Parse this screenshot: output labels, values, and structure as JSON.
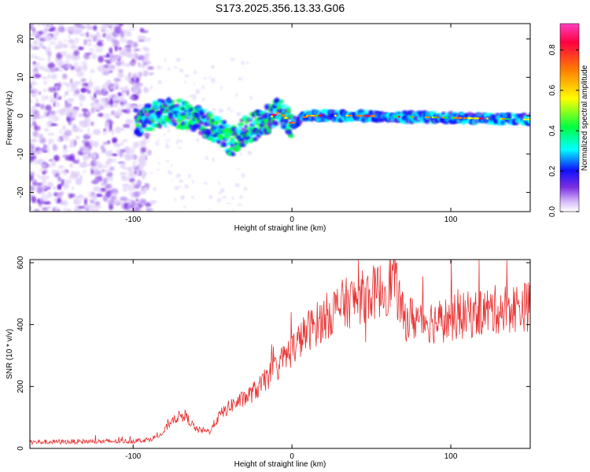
{
  "title": "S173.2025.356.13.33.G06",
  "chart_data": [
    {
      "type": "heatmap",
      "title": "S173.2025.356.13.33.G06",
      "xlabel": "Height of straight line (km)",
      "ylabel": "Frequency (Hz)",
      "xlim": [
        -165,
        150
      ],
      "ylim": [
        -25,
        24
      ],
      "xticks": [
        -100,
        0,
        100
      ],
      "yticks": [
        -20,
        -10,
        0,
        10,
        20
      ],
      "colorbar": {
        "label": "Normalized spectral amplitude",
        "ticks": [
          0.0,
          0.2,
          0.4,
          0.6,
          0.8
        ],
        "range": [
          0,
          0.93
        ],
        "colors": [
          "#ffffff",
          "#c8a8f8",
          "#7a2ee0",
          "#1010ff",
          "#00ffff",
          "#00ff40",
          "#ffff00",
          "#ff8000",
          "#ff0040",
          "#ff40c0"
        ]
      },
      "features": [
        {
          "name": "noise",
          "x_range": [
            -165,
            -95
          ],
          "freq_range": [
            -25,
            24
          ],
          "amplitude": 0.05
        },
        {
          "name": "signal-track",
          "x_range": [
            -98,
            150
          ],
          "freq_center": [
            [
              -98,
              -2
            ],
            [
              -80,
              1
            ],
            [
              -65,
              0
            ],
            [
              -55,
              -2
            ],
            [
              -45,
              -4
            ],
            [
              -38,
              -7
            ],
            [
              -30,
              -4
            ],
            [
              -20,
              -2
            ],
            [
              -8,
              1
            ],
            [
              0,
              -2
            ],
            [
              10,
              0
            ],
            [
              40,
              0
            ],
            [
              150,
              -1
            ]
          ],
          "amplitude": 0.6
        }
      ]
    },
    {
      "type": "line",
      "xlabel": "Height of straight line (km)",
      "ylabel": "SNR (10 * v/v)",
      "xlim": [
        -165,
        150
      ],
      "ylim": [
        0,
        610
      ],
      "xticks": [
        -100,
        0,
        100
      ],
      "yticks": [
        0,
        200,
        400,
        600
      ],
      "series": [
        {
          "name": "SNR",
          "color": "#e83030",
          "x": [
            -165,
            -140,
            -120,
            -100,
            -90,
            -82,
            -75,
            -68,
            -60,
            -52,
            -45,
            -38,
            -30,
            -20,
            -10,
            0,
            10,
            20,
            30,
            40,
            50,
            60,
            64,
            70,
            80,
            90,
            100,
            110,
            120,
            130,
            140,
            150
          ],
          "values": [
            20,
            22,
            22,
            24,
            28,
            45,
            95,
            110,
            60,
            55,
            110,
            140,
            160,
            200,
            260,
            320,
            380,
            420,
            460,
            480,
            500,
            520,
            560,
            420,
            420,
            410,
            420,
            430,
            440,
            450,
            455,
            460
          ]
        }
      ]
    }
  ]
}
